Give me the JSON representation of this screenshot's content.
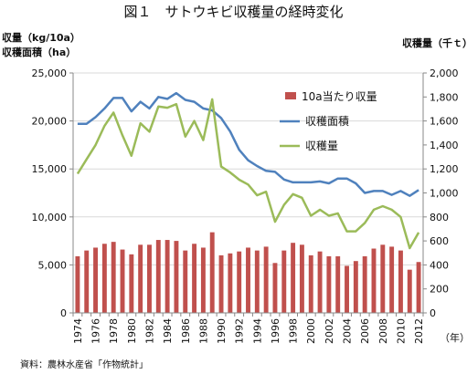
{
  "page": {
    "title": "図１　サトウキビ収穫量の経時変化",
    "source": "資料：農林水産省「作物統計」"
  },
  "chart_data": {
    "type": "bar+line",
    "title": "図１　サトウキビ収穫量の経時変化",
    "left_axis_label_1": "収量（kg/10a）",
    "left_axis_label_2": "収穫面積（ha）",
    "right_axis_label": "収穫量（千ｔ）",
    "x_unit_label": "（年）",
    "years": [
      1974,
      1975,
      1976,
      1977,
      1978,
      1979,
      1980,
      1981,
      1982,
      1983,
      1984,
      1985,
      1986,
      1987,
      1988,
      1989,
      1990,
      1991,
      1992,
      1993,
      1994,
      1995,
      1996,
      1997,
      1998,
      1999,
      2000,
      2001,
      2002,
      2003,
      2004,
      2005,
      2006,
      2007,
      2008,
      2009,
      2010,
      2011,
      2012
    ],
    "x_tick_labels": [
      "1974",
      "1976",
      "1978",
      "1980",
      "1982",
      "1984",
      "1986",
      "1988",
      "1990",
      "1992",
      "1994",
      "1996",
      "1998",
      "2000",
      "2002",
      "2004",
      "2006",
      "2008",
      "2010",
      "2012"
    ],
    "left_axis": {
      "min": 0,
      "max": 25000,
      "ticks": [
        "0",
        "5,000",
        "10,000",
        "15,000",
        "20,000",
        "25,000"
      ]
    },
    "right_axis": {
      "min": 0,
      "max": 2000,
      "ticks": [
        "0",
        "200",
        "400",
        "600",
        "800",
        "1,000",
        "1,200",
        "1,400",
        "1,600",
        "1,800",
        "2,000"
      ]
    },
    "gridlines": true,
    "legend_position": "top-right-inside",
    "series": [
      {
        "name": "10a当たり収量",
        "type": "bar",
        "axis": "left",
        "color": "#c0504d",
        "values": [
          5900,
          6500,
          6800,
          7200,
          7400,
          6600,
          6100,
          7100,
          7100,
          7600,
          7600,
          7500,
          6500,
          7200,
          6800,
          8400,
          6000,
          6200,
          6400,
          6800,
          6500,
          6900,
          5200,
          6500,
          7300,
          7100,
          6000,
          6400,
          5900,
          5900,
          4900,
          5400,
          5900,
          6700,
          7100,
          6900,
          6500,
          4500,
          5300
        ]
      },
      {
        "name": "収穫面積",
        "type": "line",
        "axis": "left",
        "color": "#4f81bd",
        "values": [
          19700,
          19700,
          20400,
          21300,
          22400,
          22400,
          21000,
          22000,
          21300,
          22500,
          22300,
          22900,
          22200,
          22000,
          21300,
          21100,
          20300,
          18900,
          17000,
          15900,
          15300,
          14800,
          14700,
          13900,
          13600,
          13600,
          13600,
          13700,
          13500,
          14000,
          14000,
          13500,
          12500,
          12700,
          12700,
          12300,
          12700,
          12200,
          12800
        ]
      },
      {
        "name": "収穫量",
        "type": "line",
        "axis": "right",
        "color": "#9bbb59",
        "values": [
          1160,
          1280,
          1400,
          1560,
          1670,
          1480,
          1310,
          1580,
          1510,
          1720,
          1710,
          1740,
          1470,
          1600,
          1440,
          1780,
          1220,
          1170,
          1110,
          1070,
          980,
          1010,
          760,
          900,
          990,
          960,
          810,
          860,
          810,
          830,
          680,
          680,
          750,
          860,
          890,
          860,
          800,
          540,
          670
        ]
      }
    ]
  }
}
